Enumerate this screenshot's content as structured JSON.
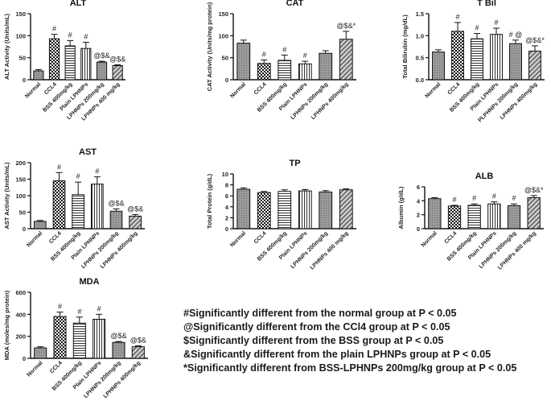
{
  "chart_data": [
    {
      "type": "bar",
      "title": "ALT",
      "ylabel": "ALT Activity (Units/mL)",
      "categories": [
        "Normal",
        "CCL4",
        "BSS 400mg/kg",
        "Plain LPHNPs",
        "LPHNPs 200mg/kg",
        "LPHNPs 400 mg/kg"
      ],
      "values": [
        20,
        93,
        77,
        71,
        40,
        32
      ],
      "errors": [
        3,
        10,
        12,
        14,
        2,
        2
      ],
      "annotations": [
        "",
        "#",
        "#",
        "#",
        "@$&",
        "@$&"
      ],
      "ylim": [
        0,
        150
      ],
      "yticks": [
        0,
        50,
        100,
        150
      ]
    },
    {
      "type": "bar",
      "title": "CAT",
      "ylabel": "CAT Activity (Units/mg protein)",
      "categories": [
        "Normal",
        "CCL4",
        "BSS 400mg/kg",
        "Plain LPHNPs",
        "LPHNPs 200mg/kg",
        "LPHNPs 400mg/kg"
      ],
      "values": [
        83,
        37,
        44,
        36,
        60,
        92
      ],
      "errors": [
        7,
        8,
        12,
        6,
        6,
        18
      ],
      "annotations": [
        "",
        "#",
        "#",
        "#",
        "",
        "@$&*"
      ],
      "ylim": [
        0,
        150
      ],
      "yticks": [
        0,
        50,
        100,
        150
      ]
    },
    {
      "type": "bar",
      "title": "T Bil",
      "ylabel": "Total Bilirubin (mg/dL)",
      "categories": [
        "Normal",
        "CCL4",
        "BSS 400mg/kg",
        "Plain LPHNPs",
        "PLPHNPs 200mg/kg",
        "LPHNPs 400mg/kg"
      ],
      "values": [
        0.63,
        1.1,
        0.93,
        1.03,
        0.82,
        0.65
      ],
      "errors": [
        0.05,
        0.2,
        0.12,
        0.14,
        0.08,
        0.12
      ],
      "annotations": [
        "",
        "#",
        "#",
        "#",
        "# @",
        "@$&*"
      ],
      "ylim": [
        0,
        1.5
      ],
      "yticks": [
        0.0,
        0.5,
        1.0,
        1.5
      ]
    },
    {
      "type": "bar",
      "title": "AST",
      "ylabel": "AST Activity (Units/mL)",
      "categories": [
        "Normal",
        "CCL4",
        "BSS 400mg/kg",
        "Plain LPHNPs",
        "LPHNPs 200mg/kg",
        "LPHNPs 400mg/kg"
      ],
      "values": [
        22,
        145,
        103,
        135,
        53,
        38
      ],
      "errors": [
        3,
        25,
        38,
        22,
        7,
        5
      ],
      "annotations": [
        "",
        "#",
        "#",
        "#",
        "@$&",
        "@$&"
      ],
      "ylim": [
        0,
        200
      ],
      "yticks": [
        0,
        50,
        100,
        150,
        200
      ]
    },
    {
      "type": "bar",
      "title": "TP",
      "ylabel": "Total Protein (g/dL)",
      "categories": [
        "Normal",
        "CCL4",
        "BSS 400mg/kg",
        "Plain LPHNPs",
        "LPHNPs 200mg/kg",
        "LPHNPs 400 mg/kg"
      ],
      "values": [
        7.2,
        6.6,
        6.8,
        6.9,
        6.7,
        7.1
      ],
      "errors": [
        0.25,
        0.2,
        0.3,
        0.25,
        0.25,
        0.2
      ],
      "annotations": [
        "",
        "",
        "",
        "",
        "",
        ""
      ],
      "ylim": [
        0,
        10
      ],
      "yticks": [
        0,
        2,
        4,
        6,
        8,
        10
      ]
    },
    {
      "type": "bar",
      "title": "ALB",
      "ylabel": "Albumin (g/dL)",
      "categories": [
        "Normal",
        "CCL4",
        "BSS 400mg/kg",
        "Plain LPHNPs",
        "LPHNPs 200mg/kg",
        "LPHNPs 400 mg/kg"
      ],
      "values": [
        4.3,
        3.25,
        3.35,
        3.55,
        3.3,
        4.45
      ],
      "errors": [
        0.15,
        0.1,
        0.2,
        0.3,
        0.25,
        0.3
      ],
      "annotations": [
        "",
        "#",
        "#",
        "#",
        "#",
        "@$&*"
      ],
      "ylim": [
        0,
        6
      ],
      "yticks": [
        0,
        2,
        4,
        6
      ]
    },
    {
      "type": "bar",
      "title": "MDA",
      "ylabel": "MDA (moles/mg protein)",
      "categories": [
        "Normal",
        "CCL4",
        "BSS 400mg/kg",
        "Plain LPHNPs",
        "LPHNPs 200mg/kg",
        "LPHNPs 400mg/kg"
      ],
      "values": [
        95,
        380,
        320,
        355,
        145,
        105
      ],
      "errors": [
        10,
        40,
        55,
        45,
        8,
        8
      ],
      "annotations": [
        "",
        "#",
        "#",
        "#",
        "@$&",
        "@$&"
      ],
      "ylim": [
        0,
        600
      ],
      "yticks": [
        0,
        200,
        400,
        600
      ]
    }
  ],
  "legend": [
    "#Significantly different from the normal group at P < 0.05",
    "@Significantly different from the CCl4 group at P < 0.05",
    "$Significantly different from the BSS group at P < 0.05",
    "&Significantly different from the plain LPHNPs group at P < 0.05",
    "*Significantly different from BSS-LPHNPs 200mg/kg group at P < 0.05"
  ]
}
